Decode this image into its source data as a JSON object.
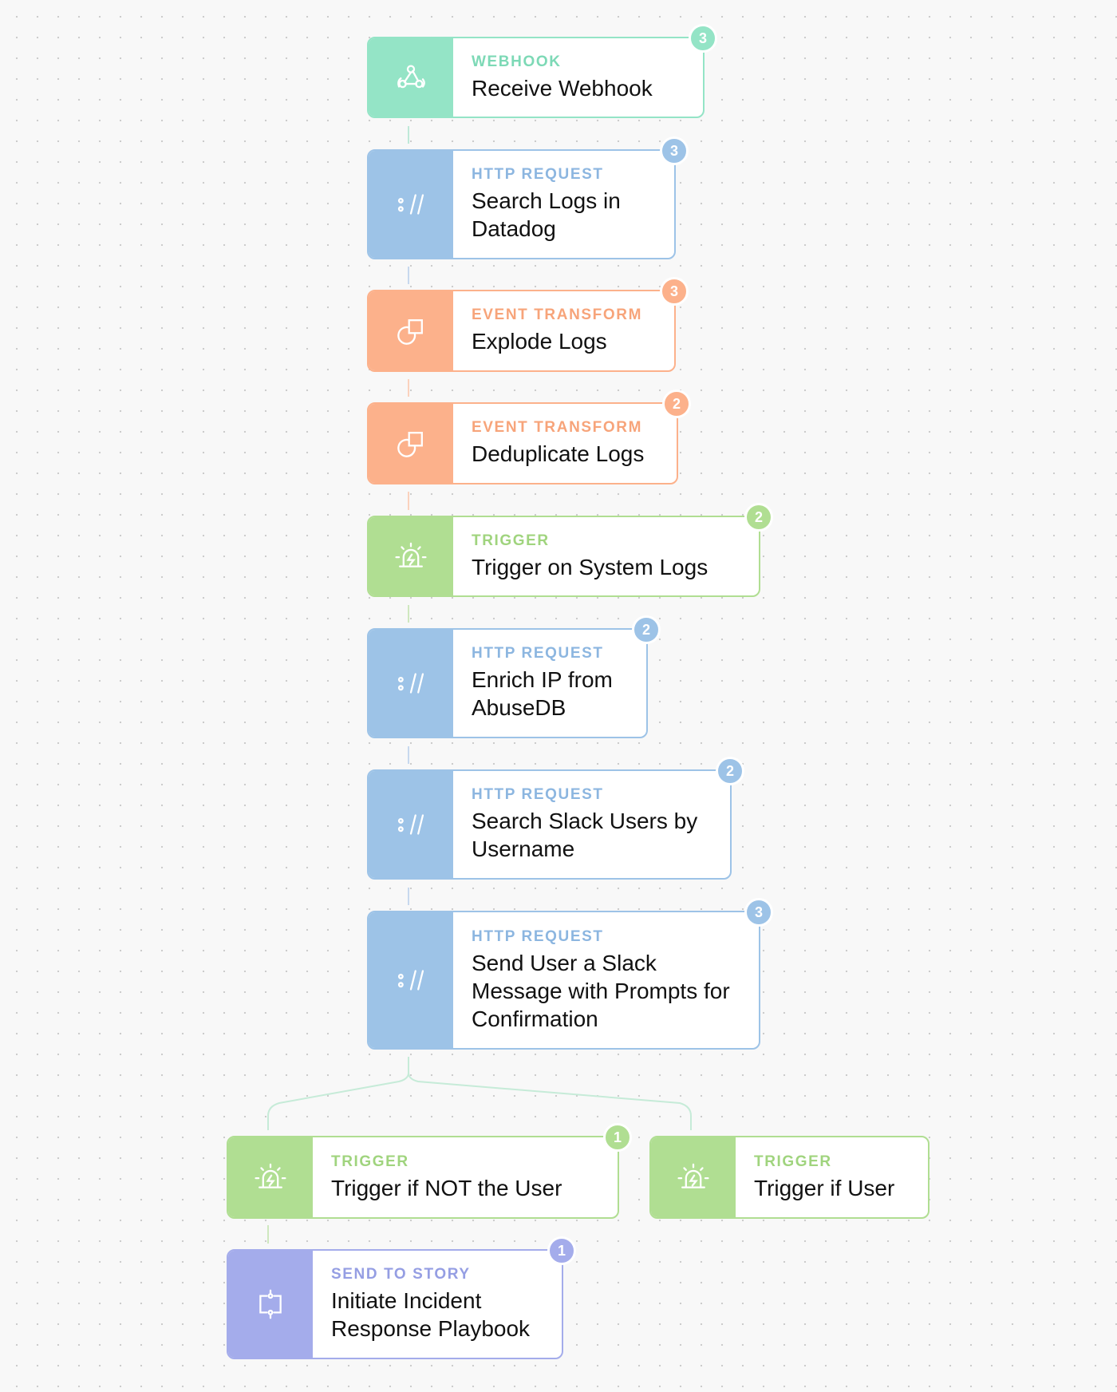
{
  "nodes": [
    {
      "kind": "WEBHOOK",
      "title": "Receive Webhook",
      "badge": "3",
      "icon": "webhook-icon"
    },
    {
      "kind": "HTTP REQUEST",
      "title": "Search Logs in Datadog",
      "badge": "3",
      "icon": "http-icon"
    },
    {
      "kind": "EVENT TRANSFORM",
      "title": "Explode Logs",
      "badge": "3",
      "icon": "transform-icon"
    },
    {
      "kind": "EVENT TRANSFORM",
      "title": "Deduplicate Logs",
      "badge": "2",
      "icon": "transform-icon"
    },
    {
      "kind": "TRIGGER",
      "title": "Trigger on System Logs",
      "badge": "2",
      "icon": "siren-icon"
    },
    {
      "kind": "HTTP REQUEST",
      "title": "Enrich IP from AbuseDB",
      "badge": "2",
      "icon": "http-icon"
    },
    {
      "kind": "HTTP REQUEST",
      "title": "Search Slack Users by Username",
      "badge": "2",
      "icon": "http-icon"
    },
    {
      "kind": "HTTP REQUEST",
      "title": "Send User a Slack Message with Prompts for Confirmation",
      "badge": "3",
      "icon": "http-icon"
    },
    {
      "kind": "TRIGGER",
      "title": "Trigger if NOT the User",
      "badge": "1",
      "icon": "siren-icon"
    },
    {
      "kind": "TRIGGER",
      "title": "Trigger if User",
      "icon": "siren-icon"
    },
    {
      "kind": "SEND TO STORY",
      "title": "Initiate Incident Response Playbook",
      "badge": "1",
      "icon": "story-icon"
    }
  ],
  "colors": {
    "webhook": "#94e4c6",
    "http": "#9dc3e7",
    "transform": "#fcb18b",
    "trigger": "#b0de92",
    "send_to_story": "#a4aceb"
  }
}
